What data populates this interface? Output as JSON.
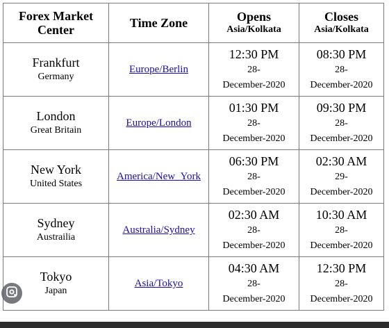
{
  "header": {
    "col1_line1": "Forex Market",
    "col1_line2": "Center",
    "col2": "Time Zone",
    "col3_title": "Opens",
    "col3_sub": "Asia/Kolkata",
    "col4_title": "Closes",
    "col4_sub": "Asia/Kolkata"
  },
  "rows": [
    {
      "city": "Frankfurt",
      "country": "Germany",
      "tz": "Europe/Berlin",
      "open_time": "12:30 PM",
      "open_day": "28-",
      "open_month": "December-2020",
      "close_time": "08:30 PM",
      "close_day": "28-",
      "close_month": "December-2020"
    },
    {
      "city": "London",
      "country": "Great Britain",
      "tz": "Europe/London",
      "open_time": "01:30 PM",
      "open_day": "28-",
      "open_month": "December-2020",
      "close_time": "09:30 PM",
      "close_day": "28-",
      "close_month": "December-2020"
    },
    {
      "city": "New York",
      "country": "United States",
      "tz": "America/New_York",
      "open_time": "06:30 PM",
      "open_day": "28-",
      "open_month": "December-2020",
      "close_time": "02:30 AM",
      "close_day": "29-",
      "close_month": "December-2020"
    },
    {
      "city": "Sydney",
      "country": "Austrailia",
      "tz": "Australia/Sydney",
      "open_time": "02:30 AM",
      "open_day": "28-",
      "open_month": "December-2020",
      "close_time": "10:30 AM",
      "close_day": "28-",
      "close_month": "December-2020"
    },
    {
      "city": "Tokyo",
      "country": "Japan",
      "tz": "Asia/Tokyo",
      "open_time": "04:30 AM",
      "open_day": "28-",
      "open_month": "December-2020",
      "close_time": "12:30 PM",
      "close_day": "28-",
      "close_month": "December-2020"
    }
  ],
  "overlay": {
    "icon": "lens-search-icon"
  },
  "colors": {
    "link": "#1a0dab",
    "border": "#7a7a7a",
    "bottom_bar": "#2d2d2d"
  }
}
